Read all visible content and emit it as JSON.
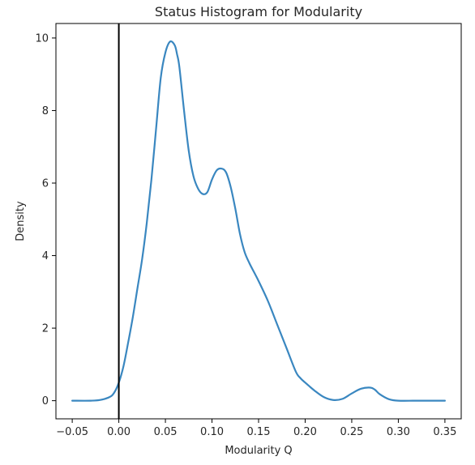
{
  "chart_data": {
    "type": "line",
    "title": "Status Histogram for Modularity",
    "xlabel": "Modularity Q",
    "ylabel": "Density",
    "xlim": [
      -0.0675,
      0.3675
    ],
    "ylim": [
      -0.5,
      10.4
    ],
    "xticks": [
      -0.05,
      0.0,
      0.05,
      0.1,
      0.15,
      0.2,
      0.25,
      0.3,
      0.35
    ],
    "xtick_labels": [
      "−0.05",
      "0.00",
      "0.05",
      "0.10",
      "0.15",
      "0.20",
      "0.25",
      "0.30",
      "0.35"
    ],
    "yticks": [
      0,
      2,
      4,
      6,
      8,
      10
    ],
    "ytick_labels": [
      "0",
      "2",
      "4",
      "6",
      "8",
      "10"
    ],
    "grid": false,
    "series": [
      {
        "color": "#3a87c0",
        "x": [
          -0.05,
          -0.03,
          -0.02,
          -0.01,
          -0.005,
          0.0,
          0.005,
          0.01,
          0.015,
          0.02,
          0.025,
          0.03,
          0.035,
          0.04,
          0.045,
          0.05,
          0.055,
          0.06,
          0.0625,
          0.065,
          0.07,
          0.075,
          0.08,
          0.085,
          0.09,
          0.095,
          0.1,
          0.105,
          0.11,
          0.115,
          0.12,
          0.125,
          0.13,
          0.135,
          0.14,
          0.145,
          0.15,
          0.16,
          0.17,
          0.18,
          0.19,
          0.195,
          0.2,
          0.21,
          0.22,
          0.23,
          0.24,
          0.25,
          0.26,
          0.27,
          0.275,
          0.28,
          0.29,
          0.3,
          0.32,
          0.35
        ],
        "y": [
          0.0,
          0.0,
          0.02,
          0.1,
          0.22,
          0.5,
          0.95,
          1.6,
          2.3,
          3.1,
          3.9,
          4.9,
          6.1,
          7.5,
          8.9,
          9.6,
          9.9,
          9.8,
          9.55,
          9.2,
          8.0,
          6.9,
          6.2,
          5.85,
          5.7,
          5.75,
          6.1,
          6.35,
          6.4,
          6.3,
          5.9,
          5.3,
          4.6,
          4.1,
          3.8,
          3.55,
          3.3,
          2.75,
          2.1,
          1.45,
          0.8,
          0.62,
          0.5,
          0.28,
          0.1,
          0.02,
          0.05,
          0.2,
          0.33,
          0.36,
          0.3,
          0.18,
          0.04,
          0.0,
          0.0,
          0.0
        ]
      }
    ],
    "vline": {
      "x": 0.0,
      "color": "#000000"
    }
  }
}
